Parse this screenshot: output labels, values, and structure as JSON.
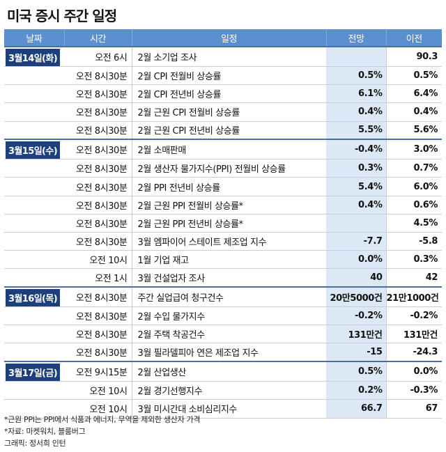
{
  "title": "미국 증시 주간 일정",
  "columns": {
    "date": "날짜",
    "time": "시간",
    "event": "일정",
    "forecast": "전망",
    "previous": "이전"
  },
  "rows": [
    {
      "date": "3월14일(화)",
      "time": "오전 6시",
      "event": "2월 소기업 조사",
      "forecast": "",
      "previous": "90.3"
    },
    {
      "date": "",
      "time": "오전 8시30분",
      "event": "2월 CPI 전월비 상승률",
      "forecast": "0.5%",
      "previous": "0.5%"
    },
    {
      "date": "",
      "time": "오전 8시30분",
      "event": "2월 CPI 전년비 상승률",
      "forecast": "6.1%",
      "previous": "6.4%"
    },
    {
      "date": "",
      "time": "오전 8시30분",
      "event": "2월 근원 CPI 전월비 상승률",
      "forecast": "0.4%",
      "previous": "0.4%"
    },
    {
      "date": "",
      "time": "오전 8시30분",
      "event": "2월 근원 CPI 전년비 상승률",
      "forecast": "5.5%",
      "previous": "5.6%"
    },
    {
      "date": "3월15일(수)",
      "time": "오전 8시30분",
      "event": "2월 소매판매",
      "forecast": "-0.4%",
      "previous": "3.0%"
    },
    {
      "date": "",
      "time": "오전 8시30분",
      "event": "2월 생산자 물가지수(PPI) 전월비 상승률",
      "forecast": "0.3%",
      "previous": "0.7%"
    },
    {
      "date": "",
      "time": "오전 8시30분",
      "event": "2월 PPI 전년비 상승률",
      "forecast": "5.4%",
      "previous": "6.0%"
    },
    {
      "date": "",
      "time": "오전 8시30분",
      "event": "2월 근원 PPI 전월비 상승률*",
      "forecast": "0.4%",
      "previous": "0.6%"
    },
    {
      "date": "",
      "time": "오전 8시30분",
      "event": "2월 근원 PPI 전년비 상승률*",
      "forecast": "",
      "previous": "4.5%"
    },
    {
      "date": "",
      "time": "오전 8시30분",
      "event": "3월 엠파이어 스테이트 제조업 지수",
      "forecast": "-7.7",
      "previous": "-5.8"
    },
    {
      "date": "",
      "time": "오전 10시",
      "event": "1월 기업 재고",
      "forecast": "0.0%",
      "previous": "0.3%"
    },
    {
      "date": "",
      "time": "오전 1시",
      "event": "3월 건설업자 조사",
      "forecast": "40",
      "previous": "42"
    },
    {
      "date": "3월16일(목)",
      "time": "오전 8시30분",
      "event": "주간 실업급여 청구건수",
      "forecast": "20만5000건",
      "previous": "21만1000건"
    },
    {
      "date": "",
      "time": "오전 8시30분",
      "event": "2월 수입 물가지수",
      "forecast": "-0.2%",
      "previous": "-0.2%"
    },
    {
      "date": "",
      "time": "오전 8시30분",
      "event": "2월 주택 착공건수",
      "forecast": "131만건",
      "previous": "131만건"
    },
    {
      "date": "",
      "time": "오전 8시30분",
      "event": "3월 필라델피아 연은 제조업 지수",
      "forecast": "-15",
      "previous": "-24.3"
    },
    {
      "date": "3월17일(금)",
      "time": "오전 9시15분",
      "event": "2월 산업생산",
      "forecast": "0.5%",
      "previous": "0.0%"
    },
    {
      "date": "",
      "time": "오전 10시",
      "event": "2월 경기선행지수",
      "forecast": "0.2%",
      "previous": "-0.3%"
    },
    {
      "date": "",
      "time": "오전 10시",
      "event": "3월 미시간대 소비심리지수",
      "forecast": "66.7",
      "previous": "67"
    }
  ],
  "notes": {
    "footnote": "*근원 PPI는 PPI에서 식품과 에너지, 무역을 제외한 생산자 가격",
    "source": "*자료: 마켓워치, 블룸버그",
    "credit": "그래픽: 정서희 인턴"
  }
}
